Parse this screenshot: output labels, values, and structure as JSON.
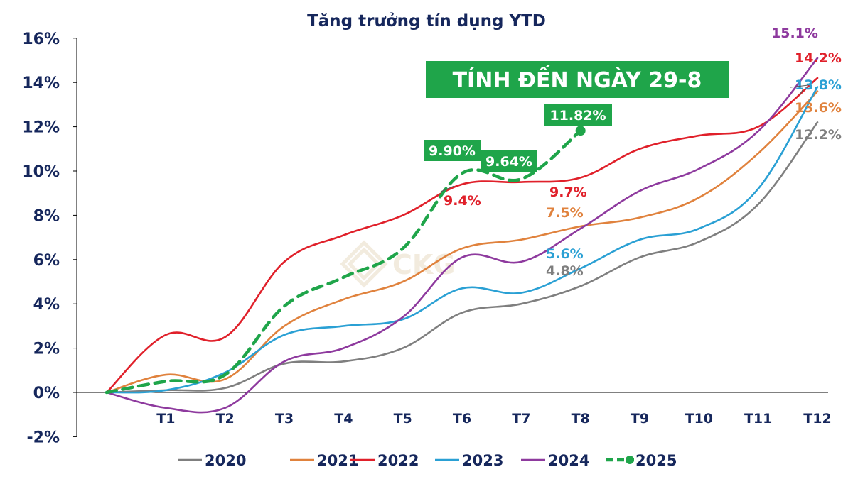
{
  "chart_data": {
    "type": "line",
    "title": "Tăng trưởng tín dụng YTD",
    "banner": "TÍNH ĐẾN NGÀY 29-8",
    "watermark": "CKG",
    "categories": [
      "",
      "T1",
      "T2",
      "T3",
      "T4",
      "T5",
      "T6",
      "T7",
      "T8",
      "T9",
      "T10",
      "T11",
      "T12"
    ],
    "ylim": [
      -2,
      16
    ],
    "yticks": [
      "-2%",
      "0%",
      "2%",
      "4%",
      "6%",
      "8%",
      "10%",
      "12%",
      "14%",
      "16%"
    ],
    "grid": false,
    "legend_position": "bottom",
    "series": [
      {
        "name": "2020",
        "color": "#7f7f7f",
        "style": "solid",
        "values": [
          0,
          0.1,
          0.2,
          1.3,
          1.4,
          2.0,
          3.6,
          4.0,
          4.8,
          6.1,
          6.8,
          8.5,
          12.2
        ]
      },
      {
        "name": "2021",
        "color": "#e0823d",
        "style": "solid",
        "values": [
          0,
          0.8,
          0.6,
          3.0,
          4.2,
          5.0,
          6.5,
          6.9,
          7.5,
          7.9,
          8.8,
          10.8,
          13.6
        ]
      },
      {
        "name": "2022",
        "color": "#e0202a",
        "style": "solid",
        "values": [
          0,
          2.6,
          2.5,
          5.9,
          7.1,
          8.0,
          9.4,
          9.5,
          9.7,
          11.0,
          11.6,
          12.0,
          14.2
        ]
      },
      {
        "name": "2023",
        "color": "#2aa0d4",
        "style": "solid",
        "values": [
          0,
          0.1,
          0.9,
          2.6,
          3.0,
          3.3,
          4.7,
          4.5,
          5.6,
          6.9,
          7.4,
          9.2,
          13.8
        ]
      },
      {
        "name": "2024",
        "color": "#8e3a9e",
        "style": "solid",
        "values": [
          0,
          -0.7,
          -0.7,
          1.4,
          2.0,
          3.4,
          6.1,
          5.9,
          7.4,
          9.1,
          10.1,
          11.8,
          15.1
        ]
      },
      {
        "name": "2025",
        "color": "#1fa54a",
        "style": "dashed",
        "values": [
          0,
          0.5,
          0.8,
          3.9,
          5.2,
          6.5,
          9.9,
          9.64,
          11.82,
          null,
          null,
          null,
          null
        ]
      }
    ],
    "data_labels": [
      {
        "series": "2022",
        "text": "9.4%",
        "color": "#e0202a",
        "boxed": false
      },
      {
        "series": "2022",
        "text": "9.7%",
        "color": "#e0202a",
        "boxed": false
      },
      {
        "series": "2021",
        "text": "7.5%",
        "color": "#e0823d",
        "boxed": false
      },
      {
        "series": "2023",
        "text": "5.6%",
        "color": "#2aa0d4",
        "boxed": false
      },
      {
        "series": "2020",
        "text": "4.8%",
        "color": "#7f7f7f",
        "boxed": false
      },
      {
        "series": "2024",
        "text": "15.1%",
        "color": "#8e3a9e",
        "boxed": false
      },
      {
        "series": "2022",
        "text": "14.2%",
        "color": "#e0202a",
        "boxed": false
      },
      {
        "series": "2023",
        "text": "13.8%",
        "color": "#2aa0d4",
        "boxed": false
      },
      {
        "series": "2021",
        "text": "13.6%",
        "color": "#e0823d",
        "boxed": false
      },
      {
        "series": "2020",
        "text": "12.2%",
        "color": "#7f7f7f",
        "boxed": false
      },
      {
        "series": "2025",
        "text": "9.90%",
        "color": "#1fa54a",
        "boxed": true
      },
      {
        "series": "2025",
        "text": "9.64%",
        "color": "#1fa54a",
        "boxed": true
      },
      {
        "series": "2025",
        "text": "11.82%",
        "color": "#1fa54a",
        "boxed": true
      }
    ]
  }
}
